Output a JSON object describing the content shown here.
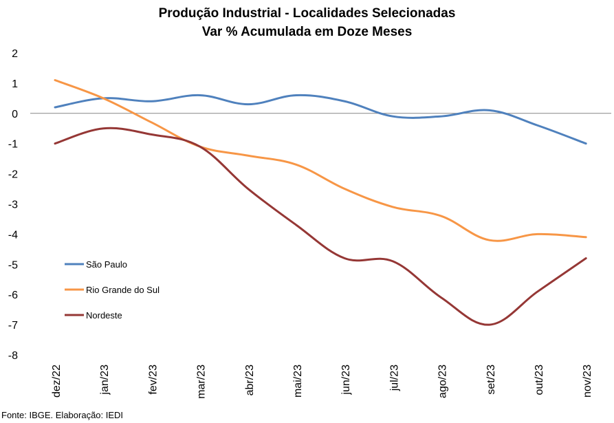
{
  "chart_data": {
    "type": "line",
    "title": "Produção Industrial - Localidades Selecionadas",
    "subtitle": "Var % Acumulada em Doze Meses",
    "xlabel": "",
    "ylabel": "",
    "categories": [
      "dez/22",
      "jan/23",
      "fev/23",
      "mar/23",
      "abr/23",
      "mai/23",
      "jun/23",
      "jul/23",
      "ago/23",
      "set/23",
      "out/23",
      "nov/23"
    ],
    "ylim": [
      -8,
      2
    ],
    "yticks": [
      "2",
      "1",
      "0",
      "-1",
      "-2",
      "-3",
      "-4",
      "-5",
      "-6",
      "-7",
      "-8"
    ],
    "grid": false,
    "legend_position": "left",
    "series": [
      {
        "name": "São Paulo",
        "color": "#4f81bd",
        "values": [
          0.2,
          0.5,
          0.4,
          0.6,
          0.3,
          0.6,
          0.4,
          -0.1,
          -0.1,
          0.1,
          -0.4,
          -1.0
        ]
      },
      {
        "name": "Rio Grande do Sul",
        "color": "#f79646",
        "values": [
          1.1,
          0.5,
          -0.3,
          -1.1,
          -1.4,
          -1.7,
          -2.5,
          -3.1,
          -3.4,
          -4.2,
          -4.0,
          -4.1
        ]
      },
      {
        "name": "Nordeste",
        "color": "#953735",
        "values": [
          -1.0,
          -0.5,
          -0.7,
          -1.1,
          -2.5,
          -3.7,
          -4.8,
          -4.9,
          -6.1,
          -7.0,
          -5.9,
          -4.8
        ]
      }
    ]
  },
  "source": "Fonte: IBGE. Elaboração: IEDI"
}
